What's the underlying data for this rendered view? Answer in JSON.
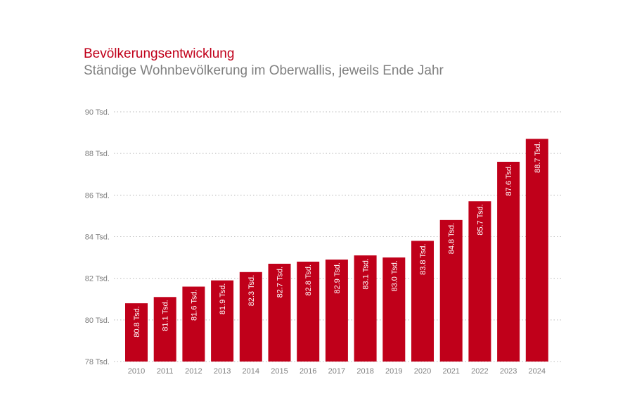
{
  "chart_data": {
    "type": "bar",
    "title": "Bevölkerungsentwicklung",
    "subtitle": "Ständige Wohnbevölkerung im Oberwallis, jeweils Ende Jahr",
    "xlabel": "",
    "ylabel": "",
    "categories": [
      "2010",
      "2011",
      "2012",
      "2013",
      "2014",
      "2015",
      "2016",
      "2017",
      "2018",
      "2019",
      "2020",
      "2021",
      "2022",
      "2023",
      "2024"
    ],
    "values": [
      80.8,
      81.1,
      81.6,
      81.9,
      82.3,
      82.7,
      82.8,
      82.9,
      83.1,
      83.0,
      83.8,
      84.8,
      85.7,
      87.6,
      88.7
    ],
    "data_labels": [
      "80.8 Tsd.",
      "81.1 Tsd.",
      "81.6 Tsd.",
      "81.9 Tsd.",
      "82.3 Tsd.",
      "82.7 Tsd.",
      "82.8 Tsd.",
      "82.9 Tsd.",
      "83.1 Tsd.",
      "83.0 Tsd.",
      "83.8 Tsd.",
      "84.8 Tsd.",
      "85.7 Tsd.",
      "87.6 Tsd.",
      "88.7 Tsd."
    ],
    "ylim": [
      78,
      90
    ],
    "yticks": [
      78,
      80,
      82,
      84,
      86,
      88,
      90
    ],
    "ytick_labels": [
      "78 Tsd.",
      "80 Tsd.",
      "82 Tsd.",
      "84 Tsd.",
      "86 Tsd.",
      "88 Tsd.",
      "90 Tsd."
    ],
    "grid": true,
    "colors": {
      "bar": "#c0001a",
      "title": "#c0001a",
      "subtitle": "#808080",
      "grid": "#bbbbbb"
    }
  }
}
